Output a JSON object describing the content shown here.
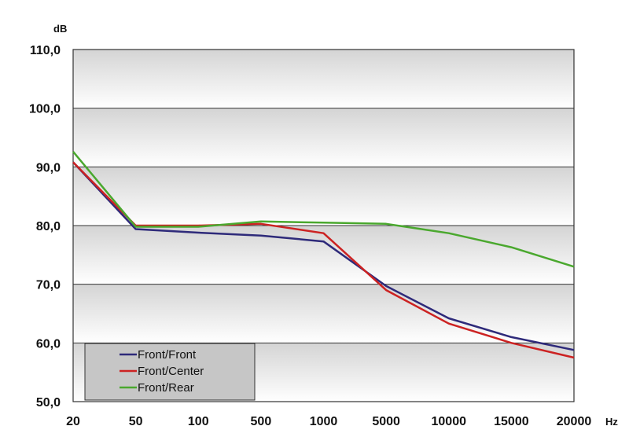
{
  "chart_data": {
    "type": "line",
    "ylabel": "dB",
    "xlabel": "Hz",
    "categories": [
      "20",
      "50",
      "100",
      "500",
      "1000",
      "5000",
      "10000",
      "15000",
      "20000"
    ],
    "ylim": [
      50,
      110
    ],
    "yticks": [
      "50,0",
      "60,0",
      "70,0",
      "80,0",
      "90,0",
      "100,0",
      "110,0"
    ],
    "grid": true,
    "legend_position": "bottom-left",
    "series": [
      {
        "name": "Front/Front",
        "color": "#2e2a7a",
        "values": [
          90.8,
          79.4,
          78.8,
          78.3,
          77.3,
          69.7,
          64.2,
          61.0,
          58.8
        ]
      },
      {
        "name": "Front/Center",
        "color": "#cc2222",
        "values": [
          90.8,
          80.0,
          80.0,
          80.3,
          78.7,
          69.0,
          63.3,
          60.0,
          57.5
        ]
      },
      {
        "name": "Front/Rear",
        "color": "#4aa82e",
        "values": [
          92.6,
          79.8,
          79.8,
          80.7,
          80.5,
          80.3,
          78.7,
          76.3,
          73.0
        ]
      }
    ]
  }
}
